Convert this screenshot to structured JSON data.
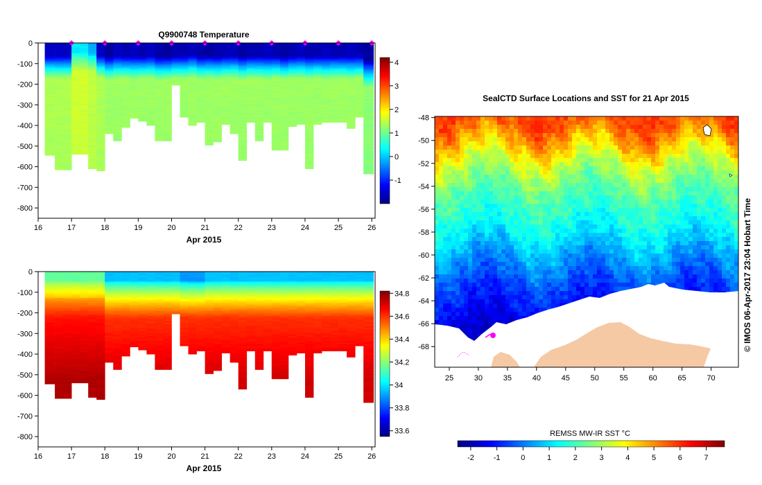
{
  "chart_data": [
    {
      "type": "heatmap",
      "title": "Q9900748  Temperature",
      "xlabel": "Apr 2015",
      "ylabel": "",
      "x_ticks": [
        "16",
        "17",
        "18",
        "19",
        "20",
        "21",
        "22",
        "23",
        "24",
        "25",
        "26"
      ],
      "y_ticks": [
        "0",
        "-100",
        "-200",
        "-300",
        "-400",
        "-500",
        "-600",
        "-700",
        "-800"
      ],
      "xlim": [
        16,
        26.1
      ],
      "ylim": [
        -850,
        0
      ],
      "colorbar_ticks": [
        "4",
        "3",
        "2",
        "1",
        "0",
        "-1"
      ],
      "colorbar_range": [
        -2,
        4.2
      ],
      "profiles": [
        {
          "day": 16.25,
          "depth": 545,
          "surface": -1.6,
          "mix": 110,
          "deep": 1.4
        },
        {
          "day": 16.5,
          "depth": 615,
          "surface": -1.6,
          "mix": 110,
          "deep": 1.4
        },
        {
          "day": 16.75,
          "depth": 615,
          "surface": -1.6,
          "mix": 110,
          "deep": 1.4
        },
        {
          "day": 17.0,
          "depth": 540,
          "surface": 0.2,
          "mix": 75,
          "deep": 1.6
        },
        {
          "day": 17.25,
          "depth": 540,
          "surface": 0.2,
          "mix": 75,
          "deep": 1.6
        },
        {
          "day": 17.5,
          "depth": 610,
          "surface": -0.2,
          "mix": 80,
          "deep": 1.5
        },
        {
          "day": 17.75,
          "depth": 620,
          "surface": -1.6,
          "mix": 105,
          "deep": 1.4
        },
        {
          "day": 18.0,
          "depth": 440,
          "surface": -1.8,
          "mix": 115,
          "deep": 1.3
        },
        {
          "day": 18.25,
          "depth": 475,
          "surface": -1.6,
          "mix": 110,
          "deep": 1.3
        },
        {
          "day": 18.5,
          "depth": 410,
          "surface": -1.7,
          "mix": 110,
          "deep": 1.3
        },
        {
          "day": 18.75,
          "depth": 365,
          "surface": -1.6,
          "mix": 115,
          "deep": 1.3
        },
        {
          "day": 19.0,
          "depth": 380,
          "surface": -1.7,
          "mix": 110,
          "deep": 1.3
        },
        {
          "day": 19.25,
          "depth": 400,
          "surface": -1.6,
          "mix": 110,
          "deep": 1.3
        },
        {
          "day": 19.5,
          "depth": 475,
          "surface": -1.7,
          "mix": 120,
          "deep": 1.3
        },
        {
          "day": 19.75,
          "depth": 475,
          "surface": -1.8,
          "mix": 115,
          "deep": 1.3
        },
        {
          "day": 20.0,
          "depth": 205,
          "surface": -1.7,
          "mix": 110,
          "deep": 1.3
        },
        {
          "day": 20.25,
          "depth": 360,
          "surface": -1.7,
          "mix": 110,
          "deep": 1.3
        },
        {
          "day": 20.5,
          "depth": 400,
          "surface": -1.6,
          "mix": 105,
          "deep": 1.3
        },
        {
          "day": 20.75,
          "depth": 385,
          "surface": -1.7,
          "mix": 115,
          "deep": 1.3
        },
        {
          "day": 21.0,
          "depth": 495,
          "surface": -1.8,
          "mix": 110,
          "deep": 1.3
        },
        {
          "day": 21.25,
          "depth": 480,
          "surface": -1.7,
          "mix": 115,
          "deep": 1.3
        },
        {
          "day": 21.5,
          "depth": 395,
          "surface": -1.7,
          "mix": 110,
          "deep": 1.3
        },
        {
          "day": 21.75,
          "depth": 440,
          "surface": -1.6,
          "mix": 110,
          "deep": 1.3
        },
        {
          "day": 22.0,
          "depth": 570,
          "surface": -1.8,
          "mix": 115,
          "deep": 1.3
        },
        {
          "day": 22.25,
          "depth": 385,
          "surface": -1.7,
          "mix": 110,
          "deep": 1.3
        },
        {
          "day": 22.5,
          "depth": 475,
          "surface": -1.7,
          "mix": 110,
          "deep": 1.3
        },
        {
          "day": 22.75,
          "depth": 385,
          "surface": -1.6,
          "mix": 115,
          "deep": 1.3
        },
        {
          "day": 23.0,
          "depth": 520,
          "surface": -1.7,
          "mix": 110,
          "deep": 1.3
        },
        {
          "day": 23.25,
          "depth": 520,
          "surface": -1.8,
          "mix": 115,
          "deep": 1.3
        },
        {
          "day": 23.5,
          "depth": 405,
          "surface": -1.7,
          "mix": 110,
          "deep": 1.3
        },
        {
          "day": 23.75,
          "depth": 395,
          "surface": -1.6,
          "mix": 110,
          "deep": 1.3
        },
        {
          "day": 24.0,
          "depth": 610,
          "surface": -1.7,
          "mix": 115,
          "deep": 1.3
        },
        {
          "day": 24.25,
          "depth": 395,
          "surface": -1.7,
          "mix": 110,
          "deep": 1.3
        },
        {
          "day": 24.5,
          "depth": 385,
          "surface": -1.6,
          "mix": 115,
          "deep": 1.3
        },
        {
          "day": 24.75,
          "depth": 385,
          "surface": -1.7,
          "mix": 110,
          "deep": 1.3
        },
        {
          "day": 25.0,
          "depth": 385,
          "surface": -1.7,
          "mix": 110,
          "deep": 1.3
        },
        {
          "day": 25.25,
          "depth": 415,
          "surface": -1.6,
          "mix": 115,
          "deep": 1.3
        },
        {
          "day": 25.5,
          "depth": 360,
          "surface": -1.7,
          "mix": 110,
          "deep": 1.3
        },
        {
          "day": 25.75,
          "depth": 635,
          "surface": -1.8,
          "mix": 150,
          "deep": 1.2
        }
      ],
      "surface_markers": [
        17,
        18,
        19,
        20,
        21,
        22,
        23,
        24,
        25,
        26
      ]
    },
    {
      "type": "heatmap",
      "title": "",
      "xlabel": "Apr 2015",
      "ylabel": "",
      "x_ticks": [
        "16",
        "17",
        "18",
        "19",
        "20",
        "21",
        "22",
        "23",
        "24",
        "25",
        "26"
      ],
      "y_ticks": [
        "0",
        "-100",
        "-200",
        "-300",
        "-400",
        "-500",
        "-600",
        "-700",
        "-800"
      ],
      "xlim": [
        16,
        26.1
      ],
      "ylim": [
        -850,
        0
      ],
      "colorbar_ticks": [
        "34.8",
        "34.6",
        "34.4",
        "34.2",
        "34",
        "33.8",
        "33.6"
      ],
      "colorbar_range": [
        33.55,
        34.82
      ],
      "surface_salinity": 33.95,
      "deep_salinity_max": 34.72
    },
    {
      "type": "heatmap",
      "title": "SealCTD Surface Locations and SST for 21 Apr 2015",
      "xlabel": "",
      "ylabel": "",
      "x_ticks": [
        "25",
        "30",
        "35",
        "40",
        "45",
        "50",
        "55",
        "60",
        "65",
        "70"
      ],
      "y_ticks": [
        "-48",
        "-50",
        "-52",
        "-54",
        "-56",
        "-58",
        "-60",
        "-62",
        "-64",
        "-66",
        "-68"
      ],
      "xlim": [
        22.5,
        74.7
      ],
      "ylim": [
        -69.8,
        -47.9
      ],
      "colorbar_label": "REMSS MW-IR SST °C",
      "colorbar_ticks": [
        "-2",
        "-1",
        "0",
        "1",
        "2",
        "3",
        "4",
        "5",
        "6",
        "7"
      ],
      "colorbar_range": [
        -2.5,
        7.7
      ],
      "sst_by_latitude": [
        [
          -48,
          5.8
        ],
        [
          -50,
          4.6
        ],
        [
          -52,
          3.2
        ],
        [
          -54,
          2.3
        ],
        [
          -56,
          1.8
        ],
        [
          -58,
          1.2
        ],
        [
          -60,
          0.4
        ],
        [
          -62,
          -0.4
        ],
        [
          -64,
          -1.0
        ],
        [
          -66,
          -1.6
        ],
        [
          -68,
          -1.8
        ]
      ],
      "credit": "©  IMOS 06-Apr-2017 23:04 Hobart Time"
    }
  ],
  "colors": {
    "jet": [
      "#00007f",
      "#0000ff",
      "#007fff",
      "#00ffff",
      "#7fff7f",
      "#ffff00",
      "#ff7f00",
      "#ff0000",
      "#7f0000"
    ],
    "land": "#f5c9a3",
    "ice": "#ffffff",
    "marker": "#ff00ff"
  }
}
